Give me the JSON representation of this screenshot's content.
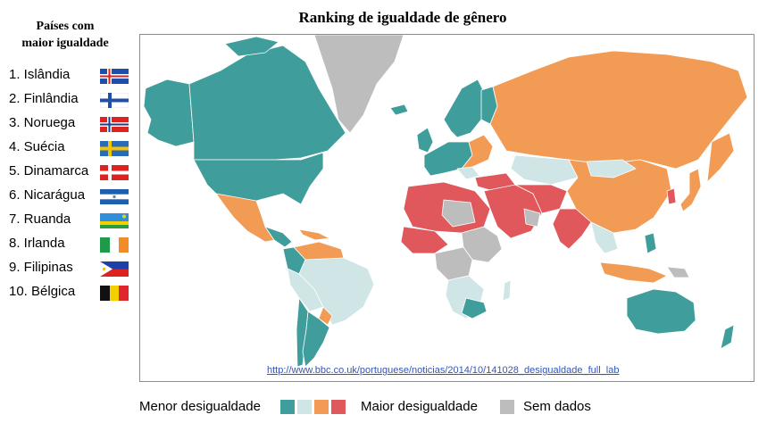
{
  "title": "Ranking de igualdade de gênero",
  "sidebar": {
    "title_line1": "Países com",
    "title_line2": "maior igualdade",
    "items": [
      {
        "label": "1. Islândia",
        "flag_icon": "iceland-flag-icon"
      },
      {
        "label": "2. Finlândia",
        "flag_icon": "finland-flag-icon"
      },
      {
        "label": "3. Noruega",
        "flag_icon": "norway-flag-icon"
      },
      {
        "label": "4. Suécia",
        "flag_icon": "sweden-flag-icon"
      },
      {
        "label": "5. Dinamarca",
        "flag_icon": "denmark-flag-icon"
      },
      {
        "label": "6. Nicarágua",
        "flag_icon": "nicaragua-flag-icon"
      },
      {
        "label": "7. Ruanda",
        "flag_icon": "rwanda-flag-icon"
      },
      {
        "label": "8. Irlanda",
        "flag_icon": "ireland-flag-icon"
      },
      {
        "label": "9. Filipinas",
        "flag_icon": "philippines-flag-icon"
      },
      {
        "label": "10. Bélgica",
        "flag_icon": "belgium-flag-icon"
      }
    ]
  },
  "source": "http://www.bbc.co.uk/portuguese/noticias/2014/10/141028_desigualdade_full_lab",
  "legend": {
    "low_label": "Menor desigualdade",
    "high_label": "Maior desigualdade",
    "no_data_label": "Sem dados",
    "scale_colors": [
      "#3f9e9b",
      "#cfe5e6",
      "#f29b55",
      "#e0575c"
    ],
    "no_data_color": "#bdbdbd"
  },
  "colors": {
    "teal": "#3f9e9b",
    "light": "#cfe5e6",
    "orange": "#f29b55",
    "red": "#e0575c",
    "gray": "#bdbdbd"
  }
}
